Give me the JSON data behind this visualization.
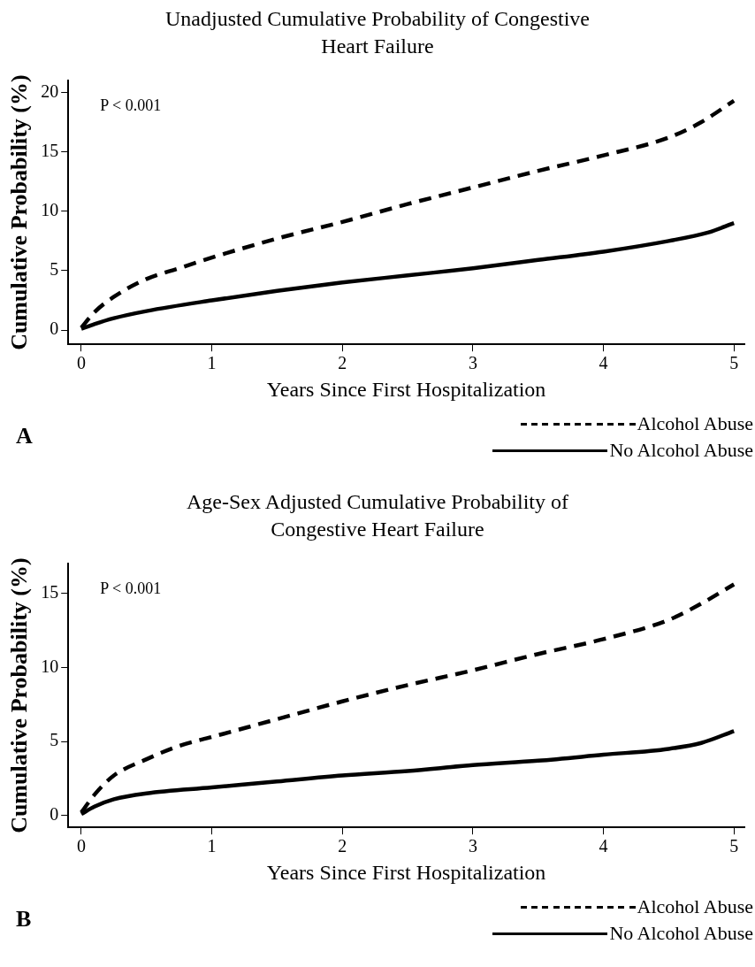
{
  "chart_data": [
    {
      "type": "line",
      "title": "Unadjusted Cumulative Probability of Congestive Heart Failure",
      "xlabel": "Years Since First Hospitalization",
      "ylabel": "Cumulative Probability (%)",
      "annotations": [
        "P < 0.001",
        "A"
      ],
      "xlim": [
        -0.1,
        5.08
      ],
      "xticks": [
        0,
        1,
        2,
        3,
        4,
        5
      ],
      "ylim": [
        -1.2,
        21
      ],
      "yticks": [
        0,
        5,
        10,
        15,
        20
      ],
      "grid": false,
      "legend": "bottom right",
      "marker": "none",
      "series": [
        {
          "name": "Alcohol Abuse",
          "color": "#000000",
          "line_style": "dashed",
          "x": [
            0,
            0.1,
            0.25,
            0.5,
            0.75,
            1,
            1.5,
            2,
            2.5,
            3,
            3.5,
            4,
            4.5,
            4.75,
            5
          ],
          "values": [
            0.2,
            1.5,
            2.8,
            4.3,
            5.2,
            6.1,
            7.7,
            9.1,
            10.6,
            12.0,
            13.4,
            14.7,
            16.2,
            17.5,
            19.3
          ]
        },
        {
          "name": "No Alcohol Abuse",
          "color": "#000000",
          "line_style": "solid",
          "x": [
            0,
            0.1,
            0.25,
            0.5,
            1,
            1.5,
            2,
            2.5,
            3,
            3.5,
            4,
            4.5,
            4.8,
            5
          ],
          "values": [
            0.1,
            0.5,
            1.0,
            1.6,
            2.5,
            3.3,
            4.0,
            4.6,
            5.2,
            5.9,
            6.6,
            7.5,
            8.2,
            9.0
          ]
        }
      ]
    },
    {
      "type": "line",
      "title": "Age-Sex Adjusted Cumulative Probability of Congestive Heart Failure",
      "xlabel": "Years Since First Hospitalization",
      "ylabel": "Cumulative Probability (%)",
      "annotations": [
        "P < 0.001",
        "B"
      ],
      "xlim": [
        -0.1,
        5.08
      ],
      "xticks": [
        0,
        1,
        2,
        3,
        4,
        5
      ],
      "ylim": [
        -0.8,
        17
      ],
      "yticks": [
        0,
        5,
        10,
        15
      ],
      "grid": false,
      "legend": "bottom right",
      "marker": "none",
      "series": [
        {
          "name": "Alcohol Abuse",
          "color": "#000000",
          "line_style": "dashed",
          "x": [
            0,
            0.1,
            0.25,
            0.5,
            0.75,
            1,
            1.5,
            2,
            2.5,
            3,
            3.5,
            4,
            4.5,
            4.75,
            5
          ],
          "values": [
            0.2,
            1.4,
            2.7,
            3.8,
            4.7,
            5.3,
            6.5,
            7.7,
            8.8,
            9.8,
            10.9,
            11.9,
            13.2,
            14.3,
            15.6
          ]
        },
        {
          "name": "No Alcohol Abuse",
          "color": "#000000",
          "line_style": "solid",
          "x": [
            0,
            0.1,
            0.25,
            0.5,
            1,
            1.5,
            2,
            2.5,
            3,
            3.5,
            4,
            4.5,
            4.75,
            5
          ],
          "values": [
            0.1,
            0.6,
            1.1,
            1.5,
            1.9,
            2.3,
            2.7,
            3.0,
            3.4,
            3.7,
            4.1,
            4.5,
            4.9,
            5.7
          ]
        }
      ]
    }
  ]
}
